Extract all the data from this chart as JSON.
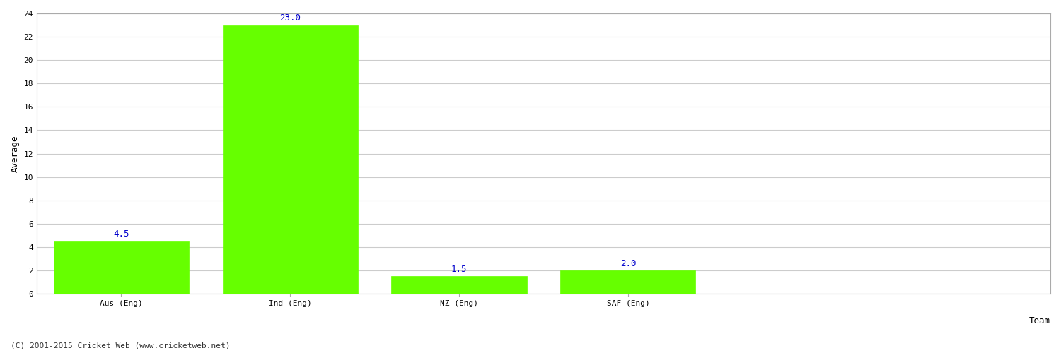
{
  "categories": [
    "Aus (Eng)",
    "Ind (Eng)",
    "NZ (Eng)",
    "SAF (Eng)"
  ],
  "values": [
    4.5,
    23.0,
    1.5,
    2.0
  ],
  "bar_color": "#66ff00",
  "bar_edge_color": "#66ff00",
  "value_labels": [
    "4.5",
    "23.0",
    "1.5",
    "2.0"
  ],
  "value_label_color": "#0000cc",
  "value_label_fontsize": 9,
  "xlabel": "Team",
  "ylabel": "Average",
  "ylim": [
    0,
    24
  ],
  "yticks": [
    0,
    2,
    4,
    6,
    8,
    10,
    12,
    14,
    16,
    18,
    20,
    22,
    24
  ],
  "grid_color": "#cccccc",
  "background_color": "#ffffff",
  "xlabel_fontsize": 9,
  "ylabel_fontsize": 9,
  "xtick_fontsize": 8,
  "ytick_fontsize": 8,
  "footer_text": "(C) 2001-2015 Cricket Web (www.cricketweb.net)",
  "footer_fontsize": 8,
  "footer_color": "#333333",
  "bar_width": 0.8,
  "spine_color": "#aaaaaa",
  "xlim_left": -0.5,
  "xlim_right": 5.5
}
